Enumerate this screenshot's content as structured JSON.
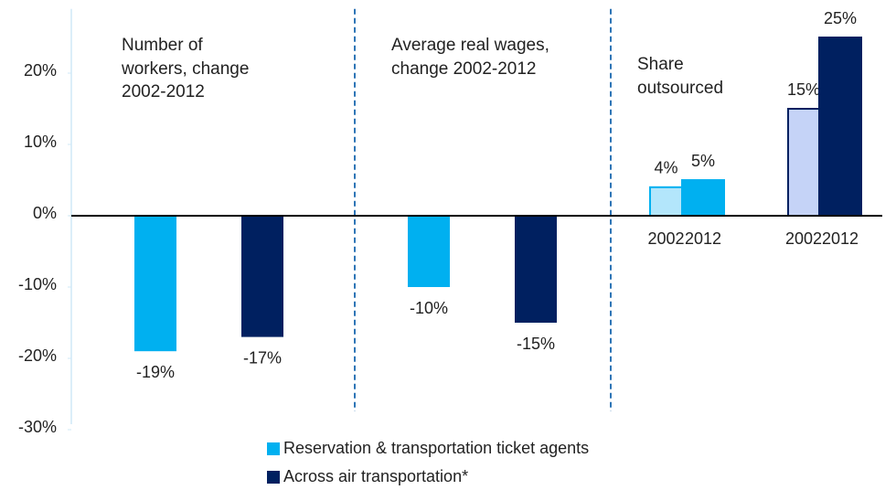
{
  "chart_data": {
    "type": "bar",
    "ylim": [
      -30,
      29
    ],
    "yticks": [
      {
        "value": 20,
        "label": "20%"
      },
      {
        "value": 10,
        "label": "10%"
      },
      {
        "value": 0,
        "label": "0%"
      },
      {
        "value": -10,
        "label": "-10%"
      },
      {
        "value": -20,
        "label": "-20%"
      },
      {
        "value": -30,
        "label": "-30%"
      }
    ],
    "grid": false,
    "series": [
      {
        "name": "Reservation & transportation ticket agents",
        "color": "#00b0f0"
      },
      {
        "name": "Across air transportation*",
        "color": "#002060"
      }
    ],
    "panels": [
      {
        "title": "Number of workers, change 2002-2012",
        "values": [
          -19,
          -17
        ],
        "value_labels": [
          "-19%",
          "-17%"
        ]
      },
      {
        "title": "Average real wages, change 2002-2012",
        "values": [
          -10,
          -15
        ],
        "value_labels": [
          "-10%",
          "-15%"
        ]
      },
      {
        "title": "Share outsourced",
        "categories": [
          "2002",
          "2012",
          "2002",
          "2012"
        ],
        "values": [
          4,
          5,
          15,
          25
        ],
        "value_labels": [
          "4%",
          "5%",
          "15%",
          "25%"
        ],
        "colors": [
          "#b3e6fb",
          "#00b0f0",
          "#c5d3f7",
          "#002060"
        ],
        "edgecolors": [
          "#00b0f0",
          "#00b0f0",
          "#002060",
          "#002060"
        ]
      }
    ]
  }
}
